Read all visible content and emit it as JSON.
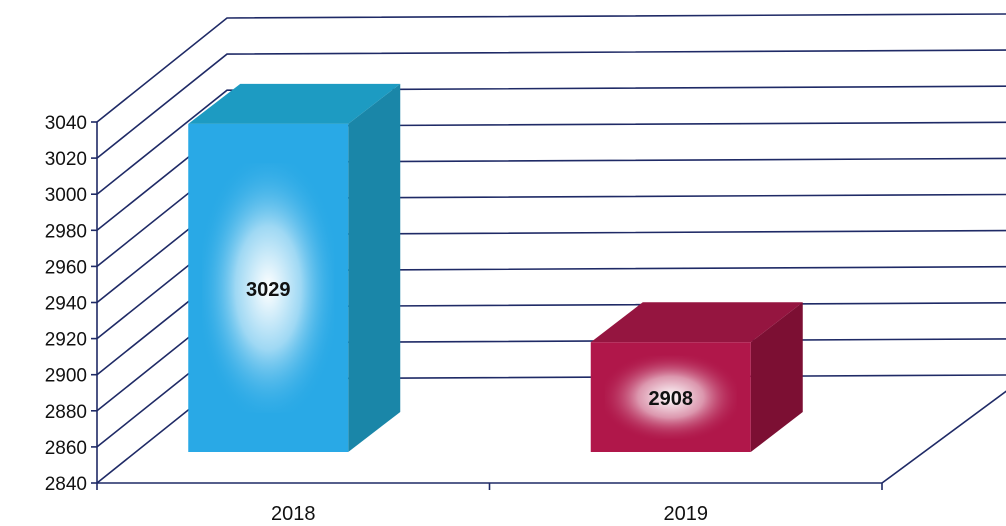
{
  "chart_data": {
    "type": "bar",
    "title": "",
    "xlabel": "",
    "ylabel": "",
    "categories": [
      "2018",
      "2019"
    ],
    "values": [
      3029,
      2908
    ],
    "data_labels": [
      "3029",
      "2908"
    ],
    "ylim": [
      2840,
      3040
    ],
    "yticks": [
      2840,
      2860,
      2880,
      2900,
      2920,
      2940,
      2960,
      2980,
      3000,
      3020,
      3040
    ],
    "grid": true,
    "legend": "none",
    "style": "3d",
    "colors": {
      "bars": [
        "#29a9e6",
        "#b0174a"
      ],
      "bar_sides": [
        "#1a86a8",
        "#7c0f33"
      ],
      "bar_tops": [
        "#1d9bc2",
        "#951540"
      ],
      "bar_glow": "#ffffff",
      "grid": "#1f2a66"
    }
  }
}
